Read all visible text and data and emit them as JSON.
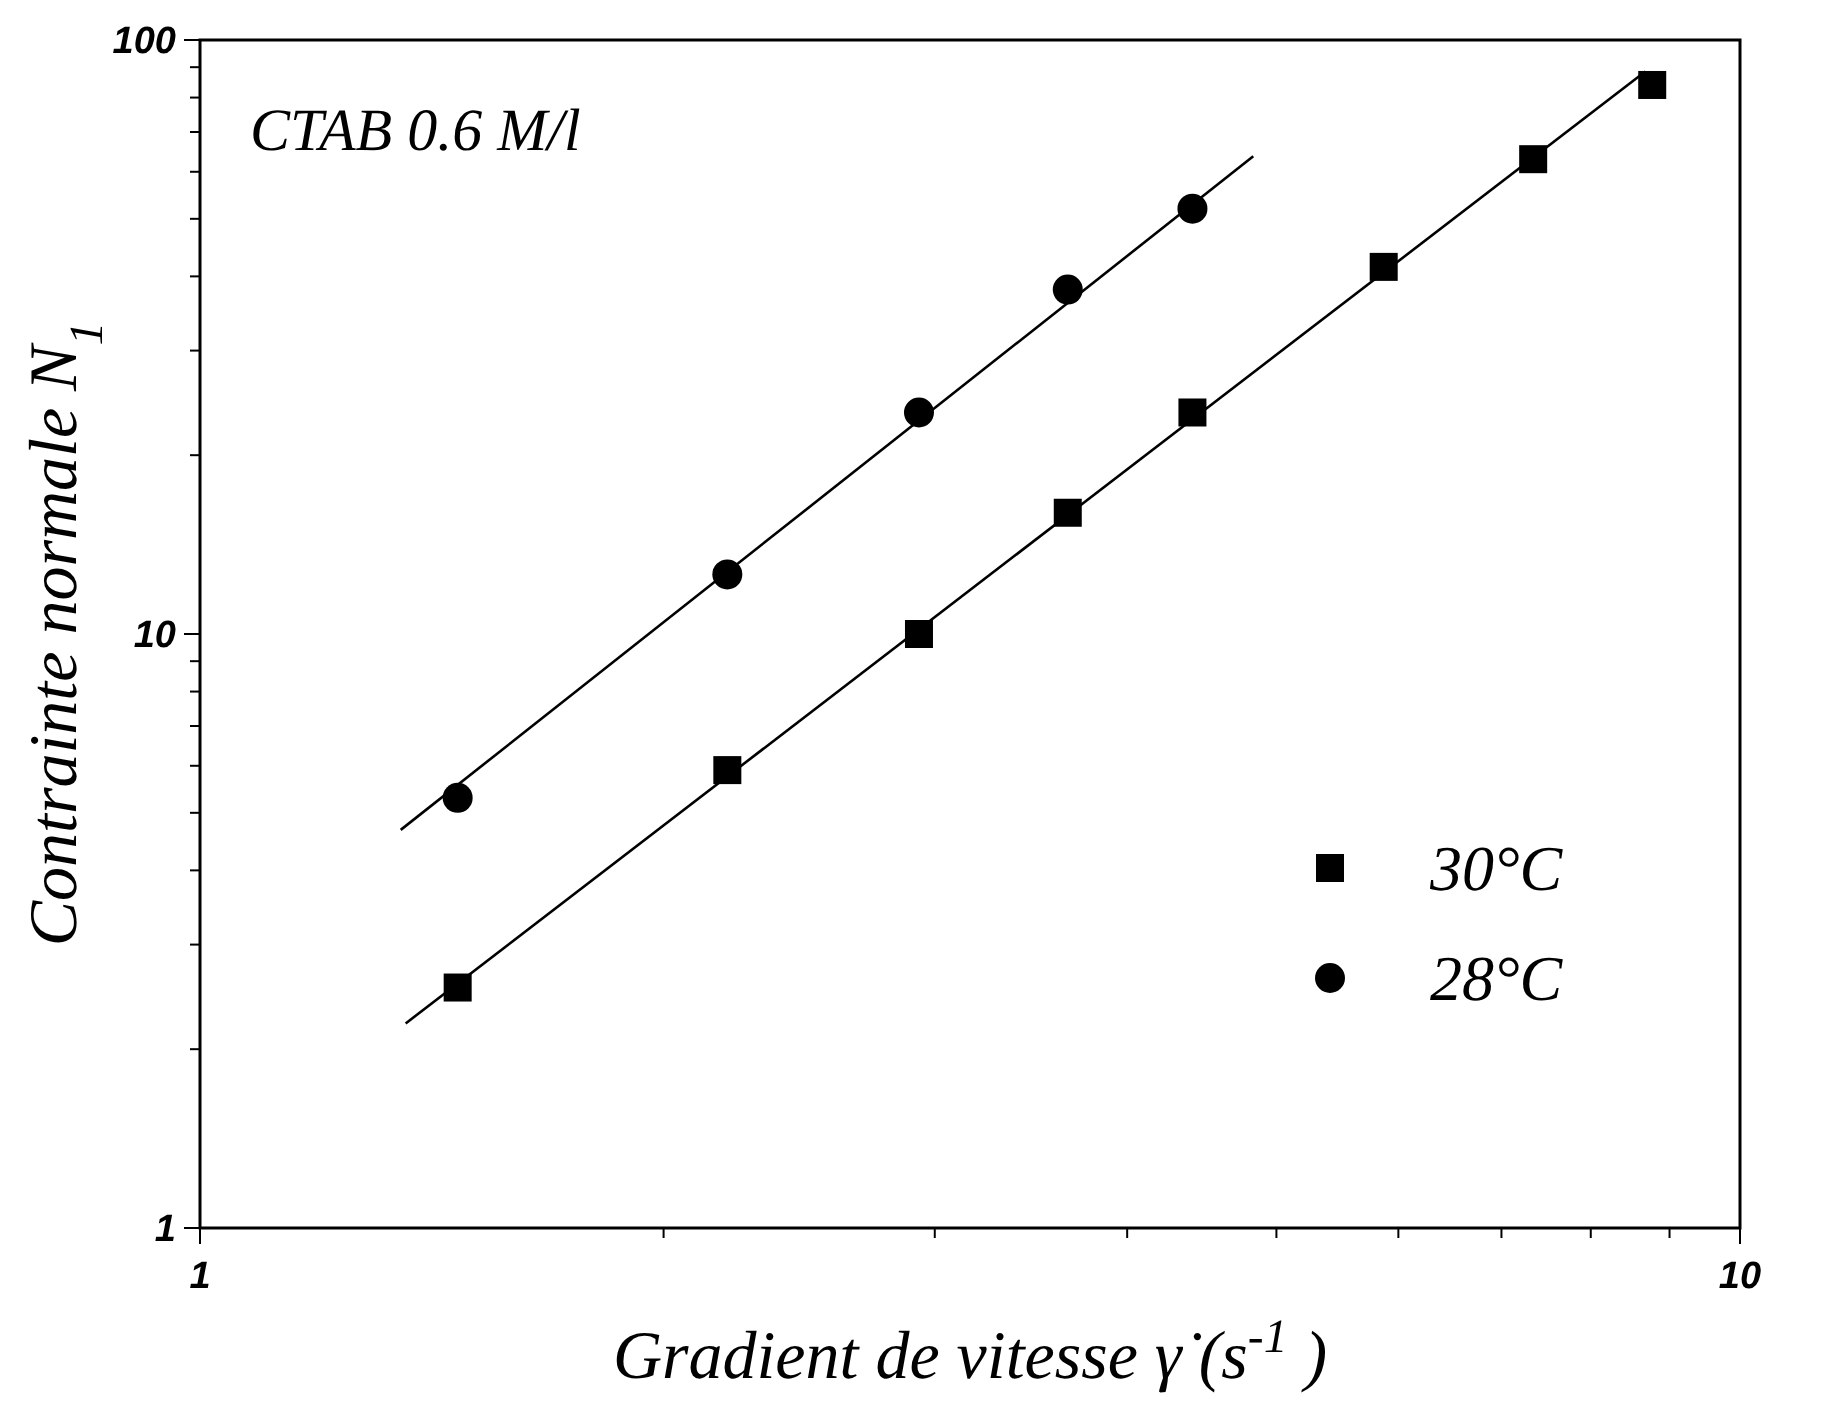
{
  "chart_data": {
    "type": "scatter",
    "xlabel": "Gradient de vitesse  γ̇ (s$^{-1}$ )",
    "ylabel": "Contrainte normale  N$_{1}$",
    "annotations": [
      "CTAB 0.6 M/l"
    ],
    "log": "xy",
    "grid": false,
    "legend": "bottom right",
    "xlim": [
      1,
      10
    ],
    "ylim": [
      1,
      100
    ],
    "xticks": [
      1,
      {
        "value": 2,
        "label": null
      },
      {
        "value": 3,
        "label": null
      },
      {
        "value": 4,
        "label": null
      },
      {
        "value": 5,
        "label": null
      },
      {
        "value": 6,
        "label": null
      },
      {
        "value": 7,
        "label": null
      },
      {
        "value": 8,
        "label": null
      },
      {
        "value": 9,
        "label": null
      },
      10
    ],
    "yticks": [
      1,
      {
        "value": 2,
        "label": null
      },
      {
        "value": 3,
        "label": null
      },
      {
        "value": 4,
        "label": null
      },
      {
        "value": 5,
        "label": null
      },
      {
        "value": 6,
        "label": null
      },
      {
        "value": 7,
        "label": null
      },
      {
        "value": 8,
        "label": null
      },
      {
        "value": 9,
        "label": null
      },
      10,
      {
        "value": 20,
        "label": null
      },
      {
        "value": 30,
        "label": null
      },
      {
        "value": 40,
        "label": null
      },
      {
        "value": 50,
        "label": null
      },
      {
        "value": 60,
        "label": null
      },
      {
        "value": 70,
        "label": null
      },
      {
        "value": 80,
        "label": null
      },
      {
        "value": 90,
        "label": null
      },
      100
    ],
    "series": [
      {
        "name": "30°C",
        "marker": "square",
        "color": "#000000",
        "x": [
          1.47,
          2.2,
          2.93,
          3.66,
          4.41,
          5.87,
          7.34,
          8.77
        ],
        "values": [
          2.54,
          5.9,
          10,
          16,
          23.6,
          41.5,
          63,
          84
        ]
      },
      {
        "name": "28°C",
        "marker": "circle",
        "color": "#000000",
        "x": [
          1.47,
          2.2,
          2.93,
          3.66,
          4.41
        ],
        "values": [
          5.3,
          12.6,
          23.6,
          38,
          52
        ]
      },
      {
        "type": "line",
        "marker": "none",
        "line_style": "solid",
        "color": "#000000",
        "x": [
          1.36,
          8.68
        ],
        "values": [
          2.21,
          88.5
        ]
      },
      {
        "type": "line",
        "marker": "none",
        "line_style": "solid",
        "color": "#000000",
        "x": [
          1.35,
          4.83
        ],
        "values": [
          4.68,
          63.7
        ]
      }
    ]
  }
}
